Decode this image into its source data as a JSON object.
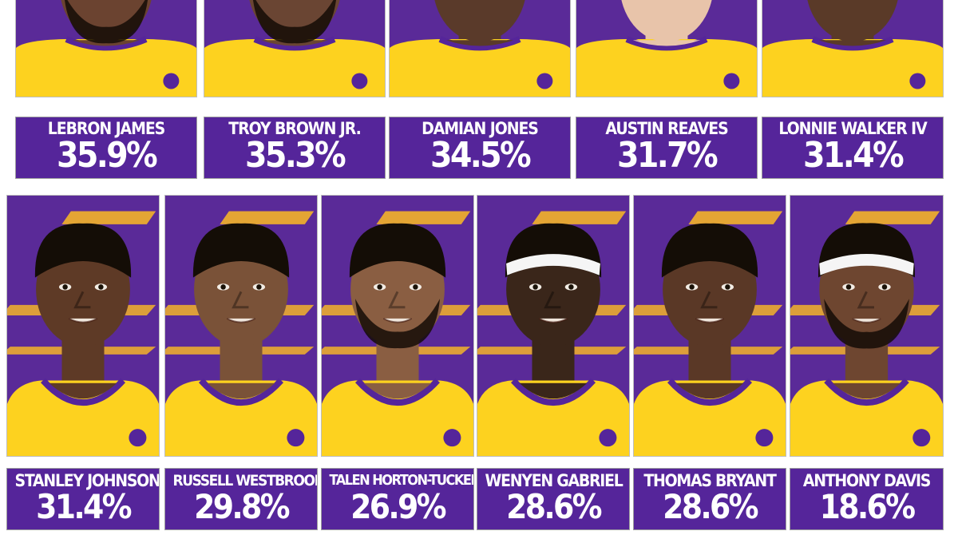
{
  "colors": {
    "lakers_purple": "#55259a",
    "lakers_gold": "#fdd21f",
    "photo_bg": "#5a2a98"
  },
  "players": [
    {
      "name": "LEBRON JAMES",
      "pct": "35.9%",
      "skin": "#6b4330",
      "hair": "#1a1208",
      "headband": false,
      "beard": true
    },
    {
      "name": "TROY BROWN JR.",
      "pct": "35.3%",
      "skin": "#6a4533",
      "hair": "#1a1208",
      "headband": false,
      "beard": true
    },
    {
      "name": "DAMIAN JONES",
      "pct": "34.5%",
      "skin": "#5a3a2a",
      "hair": "#1a1208",
      "headband": false,
      "beard": false
    },
    {
      "name": "AUSTIN REAVES",
      "pct": "31.7%",
      "skin": "#e8c4aa",
      "hair": "#7a5a3a",
      "headband": false,
      "beard": false
    },
    {
      "name": "LONNIE WALKER IV",
      "pct": "31.4%",
      "skin": "#5a3a28",
      "hair": "#1a1208",
      "headband": false,
      "beard": false
    },
    {
      "name": "STANLEY JOHNSON",
      "pct": "31.4%",
      "skin": "#5e3a26",
      "hair": "#140d06",
      "headband": false,
      "beard": false
    },
    {
      "name": "RUSSELL WESTBROOK",
      "pct": "29.8%",
      "skin": "#7a5238",
      "hair": "#140d06",
      "headband": false,
      "beard": false
    },
    {
      "name": "TALEN HORTON-TUCKER",
      "pct": "26.9%",
      "skin": "#8a5e42",
      "hair": "#140d06",
      "headband": false,
      "beard": true
    },
    {
      "name": "WENYEN GABRIEL",
      "pct": "28.6%",
      "skin": "#3a261a",
      "hair": "#140d06",
      "headband": true,
      "beard": false
    },
    {
      "name": "THOMAS BRYANT",
      "pct": "28.6%",
      "skin": "#5a3826",
      "hair": "#140d06",
      "headband": false,
      "beard": false
    },
    {
      "name": "ANTHONY DAVIS",
      "pct": "18.6%",
      "skin": "#6e4630",
      "hair": "#140d06",
      "headband": true,
      "beard": true
    }
  ]
}
